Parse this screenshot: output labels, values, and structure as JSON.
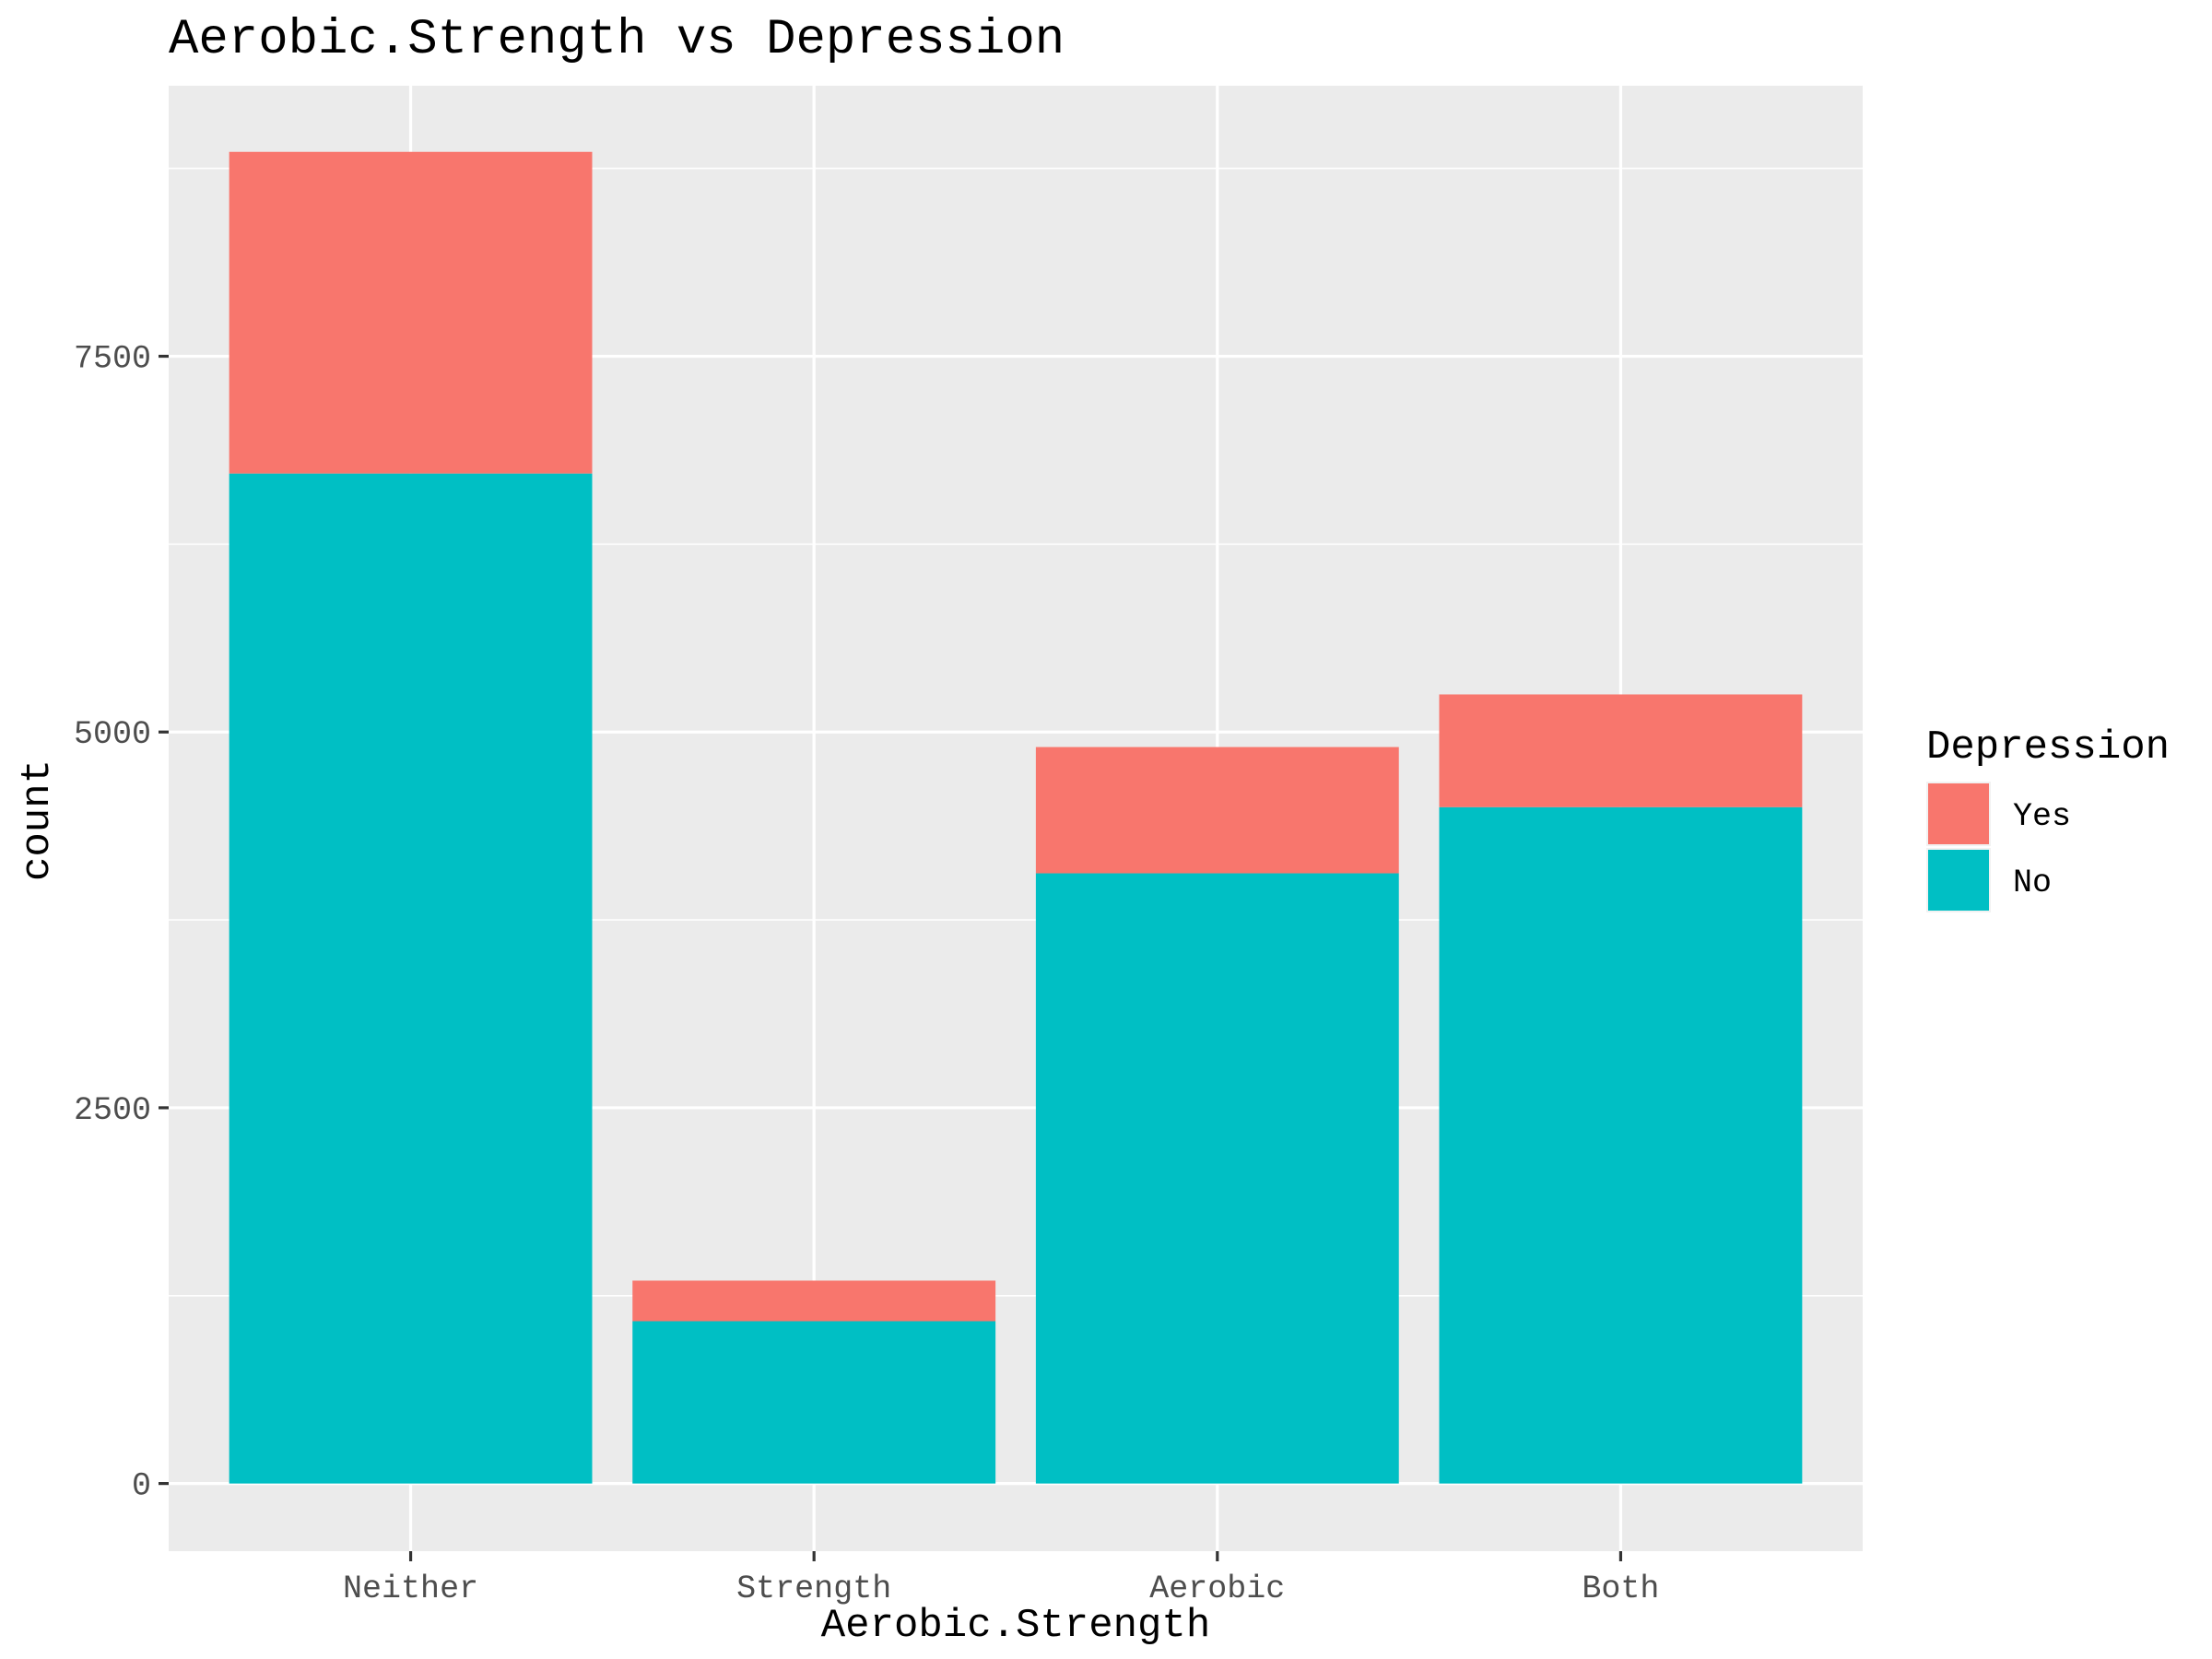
{
  "chart_data": {
    "type": "bar",
    "stacked": true,
    "title": "Aerobic.Strength vs Depression",
    "xlabel": "Aerobic.Strength",
    "ylabel": "count",
    "categories": [
      "Neither",
      "Strength",
      "Aerobic",
      "Both"
    ],
    "series": [
      {
        "name": "No",
        "values": [
          6720,
          1080,
          4060,
          4500
        ],
        "color": "#00BFC4"
      },
      {
        "name": "Yes",
        "values": [
          2140,
          270,
          840,
          750
        ],
        "color": "#F8766D"
      }
    ],
    "ylim": [
      -450,
      9300
    ],
    "yticks": [
      0,
      2500,
      5000,
      7500
    ],
    "ytick_labels": [
      "0",
      "2500",
      "5000",
      "7500"
    ],
    "grid": true,
    "legend": {
      "title": "Depression",
      "position": "right",
      "entries": [
        {
          "label": "Yes",
          "color": "#F8766D"
        },
        {
          "label": "No",
          "color": "#00BFC4"
        }
      ]
    },
    "panel_background": "#EBEBEB",
    "gridline_color": "#FFFFFF"
  }
}
